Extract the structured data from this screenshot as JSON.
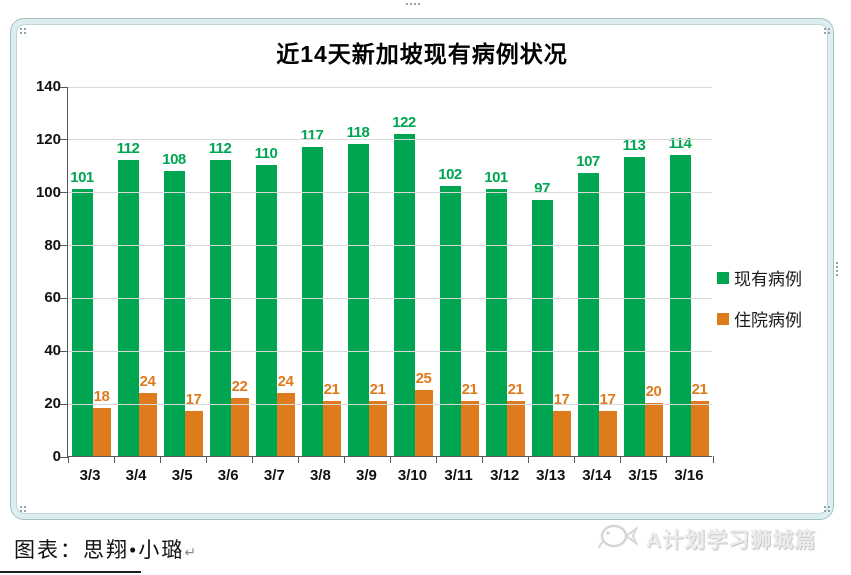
{
  "chart_data": {
    "type": "bar",
    "title": "近14天新加坡现有病例状况",
    "categories": [
      "3/3",
      "3/4",
      "3/5",
      "3/6",
      "3/7",
      "3/8",
      "3/9",
      "3/10",
      "3/11",
      "3/12",
      "3/13",
      "3/14",
      "3/15",
      "3/16"
    ],
    "series": [
      {
        "name": "现有病例",
        "color": "#00a551",
        "values": [
          101,
          112,
          108,
          112,
          110,
          117,
          118,
          122,
          102,
          101,
          97,
          107,
          113,
          114
        ]
      },
      {
        "name": "住院病例",
        "color": "#de7b1c",
        "values": [
          18,
          24,
          17,
          22,
          24,
          21,
          21,
          25,
          21,
          21,
          17,
          17,
          20,
          21
        ]
      }
    ],
    "xlabel": "",
    "ylabel": "",
    "ylim": [
      0,
      140
    ],
    "ytick_step": 20,
    "grid": true,
    "legend_position": "right",
    "bar_value_labels": true
  },
  "caption": {
    "text": "图表：思翔•小璐",
    "paragraph_mark": "↵"
  },
  "watermark": {
    "icon": "fish-logo",
    "text": "A计划学习狮城篇"
  },
  "colors": {
    "existing_cases": "#00a551",
    "hospitalized_cases": "#de7b1c",
    "frame_fill": "#dceef0",
    "gridline": "#d9d9d9"
  }
}
